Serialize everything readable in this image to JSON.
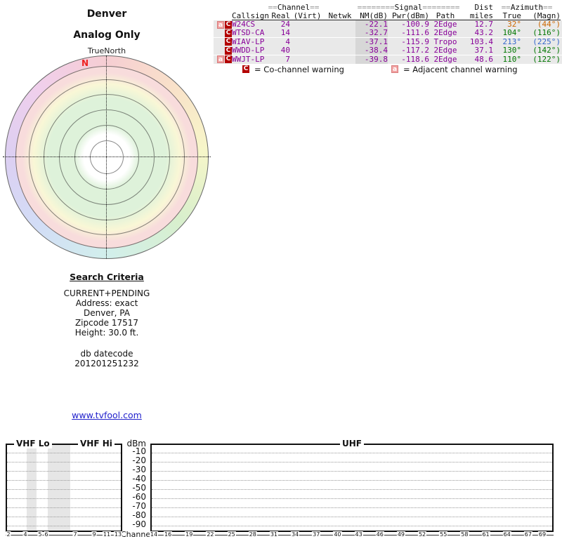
{
  "map": {
    "title": "Denver",
    "subtitle": "Analog Only",
    "north_ref": "TrueNorth",
    "north_marker": "N"
  },
  "colors": {
    "row_text": "#880099",
    "azimuth_orange": "#cc6600",
    "azimuth_green": "#007700",
    "azimuth_blue": "#3366cc",
    "badge_co_channel": "#b30000",
    "badge_adjacent": "#f2a2a2",
    "link": "#2222cc",
    "north_marker": "#ee2222",
    "row_bg": "#e9e9e9",
    "nm_col_bg": "#d7d7d7"
  },
  "table": {
    "groups": {
      "channel": {
        "pre": "==",
        "label": "Channel",
        "post": "=="
      },
      "signal": {
        "pre": "========",
        "label": "Signal",
        "post": "========"
      },
      "dist": "Dist",
      "azimuth": {
        "pre": "==",
        "label": "Azimuth",
        "post": "=="
      }
    },
    "columns": [
      "Callsign",
      "Real",
      "(Virt)",
      "Netwk",
      "NM(dB)",
      "Pwr(dBm)",
      "Path",
      "miles",
      "True",
      "(Magn)"
    ],
    "rows": [
      {
        "badges": [
          "a",
          "C"
        ],
        "callsign": "W24CS",
        "real": "24",
        "virt": "",
        "netwk": "",
        "nm": "-22.1",
        "pwr": "-100.9",
        "path": "2Edge",
        "miles": "12.7",
        "true_az": "32°",
        "magn_az": "(44°)",
        "az_color": "orange"
      },
      {
        "badges": [
          "C"
        ],
        "callsign": "WTSD-CA",
        "real": "14",
        "virt": "",
        "netwk": "",
        "nm": "-32.7",
        "pwr": "-111.6",
        "path": "2Edge",
        "miles": "43.2",
        "true_az": "104°",
        "magn_az": "(116°)",
        "az_color": "green"
      },
      {
        "badges": [
          "C"
        ],
        "callsign": "WIAV-LP",
        "real": "4",
        "virt": "",
        "netwk": "",
        "nm": "-37.1",
        "pwr": "-115.9",
        "path": "Tropo",
        "miles": "103.4",
        "true_az": "213°",
        "magn_az": "(225°)",
        "az_color": "blue"
      },
      {
        "badges": [
          "C"
        ],
        "callsign": "WWDD-LP",
        "real": "40",
        "virt": "",
        "netwk": "",
        "nm": "-38.4",
        "pwr": "-117.2",
        "path": "2Edge",
        "miles": "37.1",
        "true_az": "130°",
        "magn_az": "(142°)",
        "az_color": "green"
      },
      {
        "badges": [
          "a",
          "C"
        ],
        "callsign": "WWJT-LP",
        "real": "7",
        "virt": "",
        "netwk": "",
        "nm": "-39.8",
        "pwr": "-118.6",
        "path": "2Edge",
        "miles": "48.6",
        "true_az": "110°",
        "magn_az": "(122°)",
        "az_color": "green"
      }
    ],
    "legend": [
      {
        "badge": "C",
        "text": "= Co-channel warning"
      },
      {
        "badge": "a",
        "text": "= Adjacent channel warning"
      }
    ]
  },
  "search": {
    "heading": "Search Criteria",
    "lines": [
      "CURRENT+PENDING",
      "Address: exact",
      "Denver, PA",
      "Zipcode 17517",
      "Height: 30.0 ft."
    ],
    "db_lines": [
      "db datecode",
      "201201251232"
    ]
  },
  "link": {
    "text": "www.tvfool.com"
  },
  "chart_data": [
    {
      "type": "radar",
      "title": "Denver",
      "subtitle": "Analog Only",
      "orientation_label": "TrueNorth",
      "north_marker": "N",
      "rings": 6,
      "ring_meaning": "signal strength zones from center: white, green, green, yellow, pink, gray; outer rim is a pastel compass hue wheel",
      "stations_plotted": []
    },
    {
      "type": "table",
      "title": "Station list",
      "columns": [
        "Callsign",
        "Real",
        "(Virt)",
        "Netwk",
        "NM(dB)",
        "Pwr(dBm)",
        "Path",
        "miles",
        "True",
        "(Magn)"
      ],
      "rows": [
        [
          "W24CS",
          24,
          null,
          null,
          -22.1,
          -100.9,
          "2Edge",
          12.7,
          "32°",
          "(44°)"
        ],
        [
          "WTSD-CA",
          14,
          null,
          null,
          -32.7,
          -111.6,
          "2Edge",
          43.2,
          "104°",
          "(116°)"
        ],
        [
          "WIAV-LP",
          4,
          null,
          null,
          -37.1,
          -115.9,
          "Tropo",
          103.4,
          "213°",
          "(225°)"
        ],
        [
          "WWDD-LP",
          40,
          null,
          null,
          -38.4,
          -117.2,
          "2Edge",
          37.1,
          "130°",
          "(142°)"
        ],
        [
          "WWJT-LP",
          7,
          null,
          null,
          -39.8,
          -118.6,
          "2Edge",
          48.6,
          "110°",
          "(122°)"
        ]
      ]
    },
    {
      "type": "spectrum",
      "bands": [
        "VHF Lo",
        "VHF Hi",
        "UHF"
      ],
      "ylabel": "dBm",
      "yticks": [
        -10,
        -20,
        -30,
        -40,
        -50,
        -60,
        -70,
        -80,
        -90
      ],
      "ylim": [
        0,
        -100
      ],
      "xlabel": "Channel",
      "vhf_channels": [
        2,
        4,
        5,
        6,
        7,
        9,
        11,
        13
      ],
      "uhf_channels": [
        14,
        16,
        19,
        22,
        25,
        28,
        31,
        34,
        37,
        40,
        43,
        46,
        49,
        52,
        55,
        58,
        61,
        64,
        67,
        69
      ],
      "series": [],
      "grid": true
    }
  ]
}
